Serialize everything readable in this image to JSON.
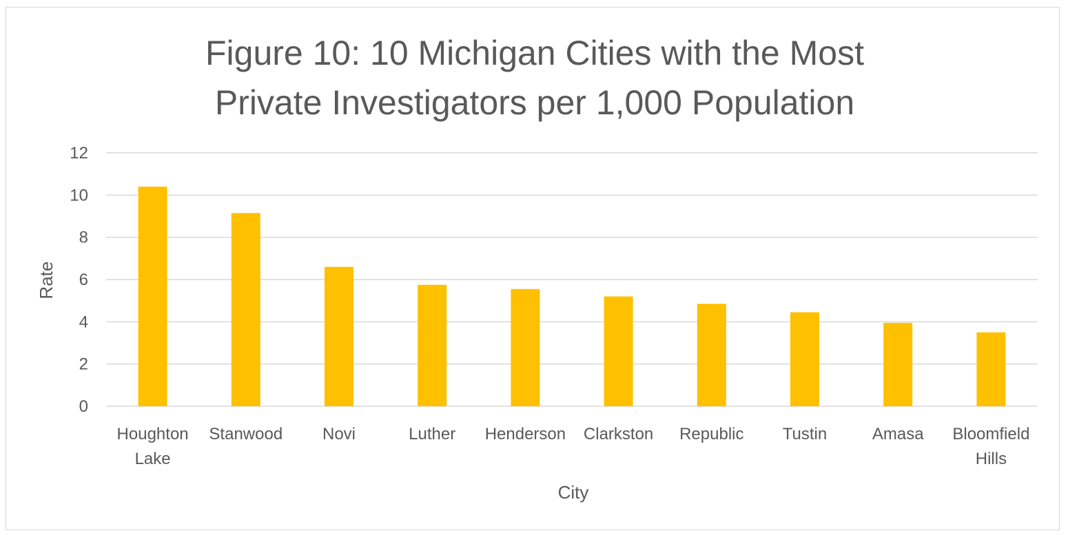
{
  "chart_data": {
    "type": "bar",
    "title_lines": [
      "Figure 10: 10 Michigan Cities with the Most",
      "Private Investigators per 1,000 Population"
    ],
    "xlabel": "City",
    "ylabel": "Rate",
    "ylim": [
      0,
      12
    ],
    "yticks": [
      0,
      2,
      4,
      6,
      8,
      10,
      12
    ],
    "grid": true,
    "legend": "none",
    "bar_color": "#FFC000",
    "categories": [
      [
        "Houghton",
        "Lake"
      ],
      [
        "Stanwood"
      ],
      [
        "Novi"
      ],
      [
        "Luther"
      ],
      [
        "Henderson"
      ],
      [
        "Clarkston"
      ],
      [
        "Republic"
      ],
      [
        "Tustin"
      ],
      [
        "Amasa"
      ],
      [
        "Bloomfield",
        "Hills"
      ]
    ],
    "values": [
      10.4,
      9.15,
      6.6,
      5.75,
      5.55,
      5.2,
      4.85,
      4.45,
      3.95,
      3.5
    ]
  }
}
